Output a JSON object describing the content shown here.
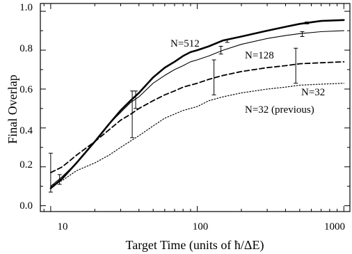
{
  "chart_data": {
    "type": "line",
    "title": "",
    "xlabel": "Target Time (units of ħ/ΔE)",
    "ylabel": "Final Overlap",
    "xscale": "log",
    "xlim": [
      8.5,
      1100
    ],
    "ylim": [
      -0.03,
      1.04
    ],
    "xticks": [
      10,
      100,
      1000
    ],
    "xtick_labels": [
      "10",
      "100",
      "1000"
    ],
    "yticks": [
      0.0,
      0.2,
      0.4,
      0.6,
      0.8,
      1.0
    ],
    "ytick_labels": [
      "0.0",
      "0.2",
      "0.4",
      "0.6",
      "0.8",
      "1.0"
    ],
    "grid": false,
    "legend": "none",
    "series": [
      {
        "name": "N=512",
        "style": "thick-solid",
        "x": [
          10,
          12,
          15,
          20,
          25,
          30,
          35,
          40,
          50,
          60,
          70,
          80,
          90,
          100,
          120,
          150,
          200,
          300,
          400,
          500,
          700,
          1000
        ],
        "y": [
          0.09,
          0.14,
          0.22,
          0.33,
          0.42,
          0.49,
          0.54,
          0.58,
          0.66,
          0.71,
          0.74,
          0.77,
          0.79,
          0.8,
          0.82,
          0.85,
          0.87,
          0.9,
          0.92,
          0.935,
          0.95,
          0.955
        ],
        "error_bars": [
          {
            "x": 11.5,
            "low": 0.11,
            "high": 0.16
          },
          {
            "x": 160,
            "low": 0.84,
            "high": 0.855
          },
          {
            "x": 560,
            "low": 0.935,
            "high": 0.945
          }
        ]
      },
      {
        "name": "N=128",
        "style": "thin-solid",
        "x": [
          10,
          12,
          15,
          20,
          25,
          30,
          35,
          40,
          50,
          60,
          70,
          80,
          90,
          100,
          120,
          150,
          200,
          300,
          400,
          500,
          700,
          1000
        ],
        "y": [
          0.1,
          0.15,
          0.22,
          0.33,
          0.42,
          0.48,
          0.53,
          0.56,
          0.63,
          0.67,
          0.7,
          0.72,
          0.74,
          0.75,
          0.77,
          0.8,
          0.83,
          0.86,
          0.875,
          0.885,
          0.895,
          0.9
        ],
        "error_bars": [
          {
            "x": 38,
            "low": 0.5,
            "high": 0.59
          },
          {
            "x": 145,
            "low": 0.78,
            "high": 0.82
          },
          {
            "x": 520,
            "low": 0.87,
            "high": 0.895
          }
        ]
      },
      {
        "name": "N=32",
        "style": "dashed",
        "x": [
          10,
          12,
          15,
          20,
          25,
          30,
          35,
          40,
          50,
          60,
          70,
          80,
          100,
          120,
          150,
          200,
          300,
          400,
          500,
          700,
          1000
        ],
        "y": [
          0.17,
          0.2,
          0.26,
          0.33,
          0.39,
          0.44,
          0.47,
          0.5,
          0.54,
          0.57,
          0.59,
          0.61,
          0.63,
          0.65,
          0.67,
          0.69,
          0.71,
          0.72,
          0.73,
          0.735,
          0.74
        ],
        "error_bars": [
          {
            "x": 36,
            "low": 0.35,
            "high": 0.59
          },
          {
            "x": 130,
            "low": 0.57,
            "high": 0.75
          },
          {
            "x": 470,
            "low": 0.63,
            "high": 0.81
          }
        ]
      },
      {
        "name": "N=32 (previous)",
        "style": "dotted",
        "x": [
          10,
          12,
          15,
          20,
          25,
          30,
          40,
          50,
          60,
          80,
          100,
          120,
          150,
          200,
          300,
          400,
          500,
          700,
          1000
        ],
        "y": [
          0.1,
          0.13,
          0.18,
          0.22,
          0.26,
          0.3,
          0.36,
          0.41,
          0.45,
          0.49,
          0.51,
          0.54,
          0.56,
          0.58,
          0.6,
          0.61,
          0.62,
          0.625,
          0.63
        ],
        "error_bars": [
          {
            "x": 10,
            "low": 0.07,
            "high": 0.27
          }
        ]
      }
    ]
  }
}
